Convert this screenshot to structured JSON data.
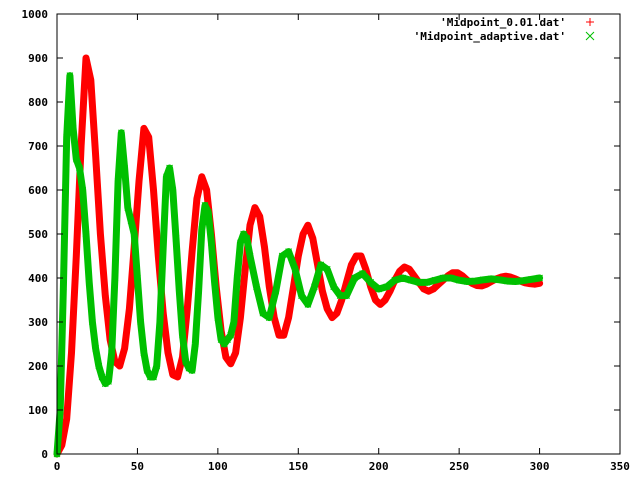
{
  "chart_data": {
    "type": "scatter",
    "xlim": [
      0,
      350
    ],
    "ylim": [
      0,
      1000
    ],
    "xticks": [
      0,
      50,
      100,
      150,
      200,
      250,
      300,
      350
    ],
    "yticks": [
      0,
      100,
      200,
      300,
      400,
      500,
      600,
      700,
      800,
      900,
      1000
    ],
    "grid": false,
    "legend_position": "top-right",
    "series": [
      {
        "name": "'Midpoint_0.01.dat'",
        "marker": "+",
        "color": "#ff0000",
        "x": [
          0,
          3,
          6,
          9,
          12,
          15,
          18,
          21,
          24,
          27,
          30,
          33,
          36,
          39,
          42,
          45,
          48,
          51,
          54,
          57,
          60,
          63,
          66,
          69,
          72,
          75,
          78,
          81,
          84,
          87,
          90,
          93,
          96,
          99,
          102,
          105,
          108,
          111,
          114,
          117,
          120,
          123,
          126,
          129,
          132,
          135,
          138,
          141,
          144,
          147,
          150,
          153,
          156,
          159,
          162,
          165,
          168,
          171,
          174,
          177,
          180,
          183,
          186,
          189,
          192,
          195,
          198,
          201,
          204,
          207,
          210,
          213,
          216,
          219,
          222,
          225,
          228,
          231,
          234,
          237,
          240,
          243,
          246,
          249,
          252,
          255,
          258,
          261,
          264,
          267,
          270,
          273,
          276,
          279,
          282,
          285,
          288,
          291,
          294,
          297,
          300
        ],
        "y": [
          0,
          20,
          80,
          230,
          450,
          700,
          900,
          850,
          680,
          500,
          360,
          260,
          210,
          200,
          240,
          330,
          470,
          620,
          740,
          720,
          600,
          450,
          320,
          230,
          180,
          175,
          220,
          330,
          460,
          580,
          630,
          600,
          500,
          380,
          280,
          220,
          205,
          230,
          310,
          420,
          520,
          560,
          540,
          470,
          380,
          310,
          270,
          270,
          310,
          380,
          450,
          500,
          520,
          490,
          430,
          370,
          330,
          310,
          320,
          350,
          390,
          430,
          450,
          450,
          420,
          380,
          350,
          340,
          350,
          370,
          395,
          415,
          425,
          420,
          405,
          390,
          375,
          370,
          375,
          385,
          395,
          405,
          412,
          412,
          405,
          395,
          388,
          383,
          382,
          386,
          392,
          398,
          402,
          404,
          402,
          398,
          393,
          389,
          387,
          386,
          388
        ]
      },
      {
        "name": "'Midpoint_adaptive.dat'",
        "marker": "x",
        "color": "#00c000",
        "x": [
          0,
          2,
          4,
          6,
          8,
          10,
          12,
          14,
          16,
          18,
          20,
          22,
          24,
          26,
          28,
          30,
          32,
          34,
          36,
          38,
          40,
          42,
          44,
          46,
          48,
          50,
          52,
          54,
          56,
          58,
          60,
          62,
          64,
          66,
          68,
          70,
          72,
          74,
          76,
          78,
          80,
          82,
          84,
          86,
          88,
          90,
          92,
          94,
          96,
          98,
          100,
          102,
          104,
          106,
          108,
          110,
          112,
          114,
          116,
          118,
          120,
          124,
          128,
          132,
          136,
          140,
          144,
          148,
          152,
          156,
          160,
          164,
          168,
          172,
          176,
          180,
          185,
          190,
          195,
          200,
          205,
          210,
          215,
          220,
          225,
          230,
          235,
          240,
          245,
          250,
          255,
          260,
          265,
          270,
          275,
          280,
          285,
          290,
          295,
          300
        ],
        "y": [
          0,
          100,
          380,
          720,
          860,
          740,
          670,
          650,
          600,
          500,
          390,
          300,
          240,
          200,
          175,
          160,
          165,
          230,
          400,
          620,
          730,
          650,
          560,
          530,
          500,
          400,
          300,
          230,
          190,
          175,
          175,
          200,
          300,
          470,
          630,
          650,
          600,
          490,
          370,
          270,
          210,
          195,
          190,
          250,
          370,
          510,
          565,
          550,
          480,
          390,
          310,
          260,
          250,
          260,
          270,
          300,
          400,
          480,
          500,
          490,
          450,
          380,
          320,
          310,
          370,
          450,
          460,
          420,
          360,
          340,
          380,
          430,
          420,
          380,
          360,
          360,
          400,
          410,
          390,
          375,
          380,
          395,
          400,
          395,
          390,
          390,
          395,
          400,
          400,
          395,
          392,
          393,
          396,
          398,
          396,
          393,
          392,
          394,
          397,
          400
        ]
      }
    ]
  }
}
